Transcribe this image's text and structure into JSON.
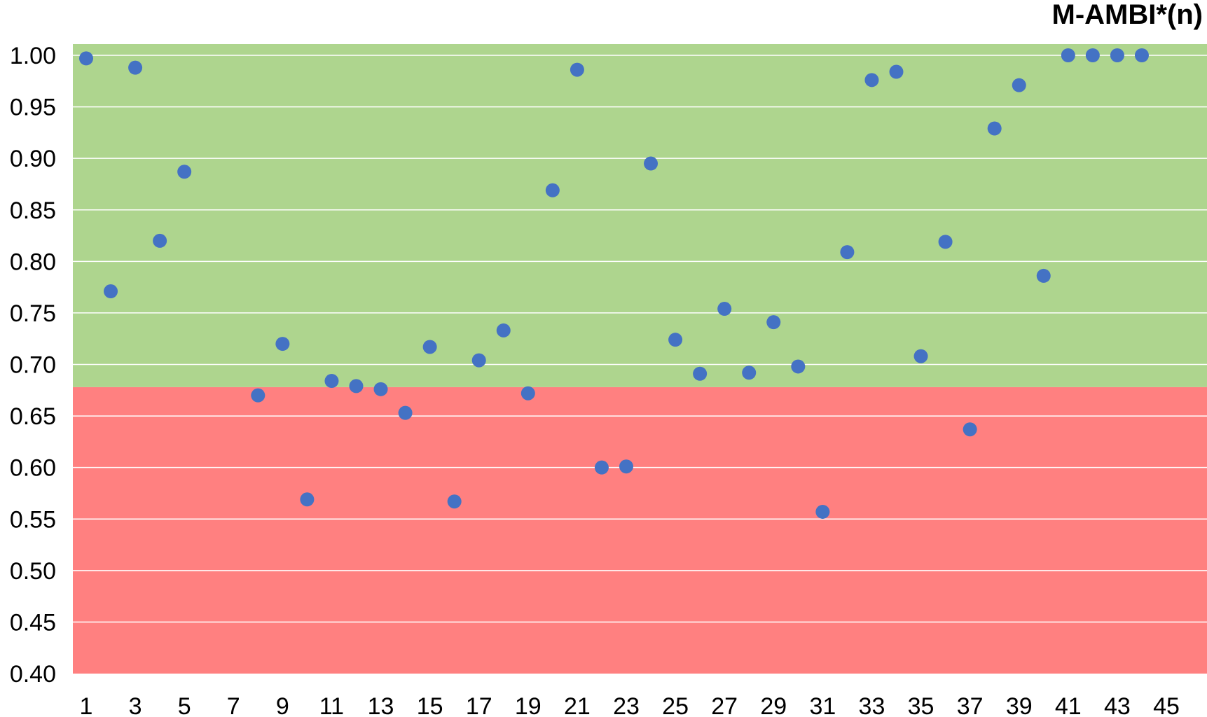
{
  "chart_data": {
    "type": "scatter",
    "title": "M-AMBI*(n)",
    "xlabel": "",
    "ylabel": "",
    "xlim": [
      1,
      45
    ],
    "ylim": [
      0.4,
      1.0
    ],
    "grid": true,
    "legend": "none",
    "x_tick_labels": [
      "1",
      "3",
      "5",
      "7",
      "9",
      "11",
      "13",
      "15",
      "17",
      "19",
      "21",
      "23",
      "25",
      "27",
      "29",
      "31",
      "33",
      "35",
      "37",
      "39",
      "41",
      "43",
      "45"
    ],
    "y_tick_labels": [
      "0.40",
      "0.45",
      "0.50",
      "0.55",
      "0.60",
      "0.65",
      "0.70",
      "0.75",
      "0.80",
      "0.85",
      "0.90",
      "0.95",
      "1.00"
    ],
    "bands": [
      {
        "from": 0.4,
        "to": 0.678,
        "color": "#FF8080"
      },
      {
        "from": 0.678,
        "to": 1.011,
        "color": "#AED58E"
      }
    ],
    "marker_color": "#4472C4",
    "series": [
      {
        "x": [
          1,
          2,
          3,
          4,
          5,
          8,
          9,
          10,
          11,
          12,
          13,
          14,
          15,
          16,
          17,
          18,
          19,
          20,
          21,
          22,
          23,
          24,
          25,
          26,
          27,
          28,
          29,
          30,
          31,
          32,
          33,
          34,
          35,
          36,
          37,
          38,
          39,
          40,
          41,
          42,
          43,
          44
        ],
        "y": [
          0.997,
          0.771,
          0.988,
          0.82,
          0.887,
          0.67,
          0.72,
          0.569,
          0.684,
          0.679,
          0.676,
          0.653,
          0.717,
          0.567,
          0.704,
          0.733,
          0.672,
          0.869,
          0.986,
          0.6,
          0.601,
          0.895,
          0.724,
          0.691,
          0.754,
          0.692,
          0.741,
          0.698,
          0.557,
          0.809,
          0.976,
          0.984,
          0.708,
          0.819,
          0.637,
          0.929,
          0.971,
          0.786,
          1.0,
          1.0,
          1.0,
          1.0
        ]
      }
    ]
  }
}
